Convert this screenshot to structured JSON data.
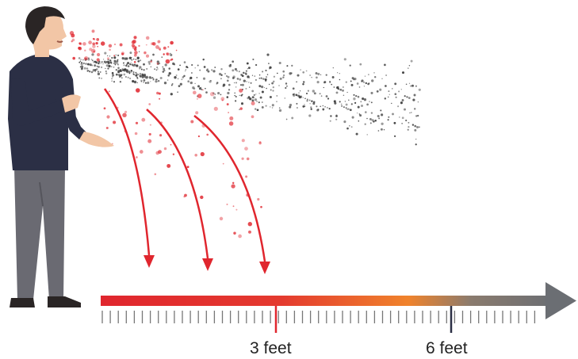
{
  "scale": {
    "labels": [
      {
        "id": "three",
        "text": "3 feet"
      },
      {
        "id": "six",
        "text": "6 feet"
      }
    ],
    "marker_colors": {
      "three": "#e0262e",
      "six": "#2b2f45"
    }
  },
  "colors": {
    "droplet_red": "#e0262e",
    "aerosol": "#3a3a3a",
    "arrow_gradient_start": "#e0262e",
    "arrow_gradient_mid": "#f0832c",
    "arrow_gradient_end": "#6b6e73",
    "shirt": "#2b2f45",
    "pants": "#6a6a72",
    "skin": "#f2c6a6",
    "hair": "#2a2525"
  },
  "icons": [
    "person-figure",
    "aerosol-cloud",
    "droplet-spray",
    "trajectory-arrows",
    "distance-scale-arrow"
  ]
}
